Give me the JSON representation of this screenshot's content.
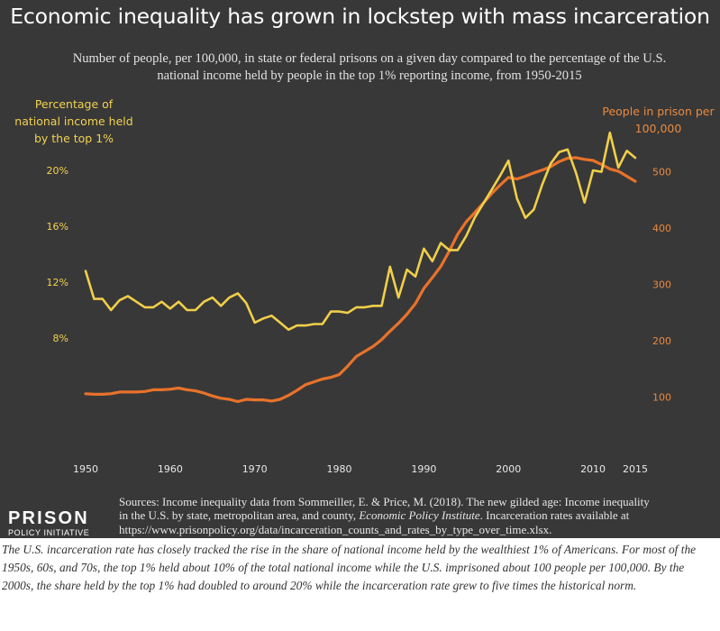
{
  "header": {
    "title": "Economic inequality has grown in lockstep with mass incarceration",
    "subtitle": "Number of people, per 100,000, in state or federal prisons on a given day compared to the percentage of the U.S. national income held by people in the top 1% reporting income, from 1950-2015"
  },
  "axis_labels": {
    "left": "Percentage of national income held by the top 1%",
    "right": "People in prison per 100,000"
  },
  "sources": {
    "part1": "Sources: Income inequality data from Sommeiller, E. & Price, M. (2018). The new gilded age: Income inequality in the U.S. by state, metropolitan area, and county, ",
    "publication": "Economic Policy Institute",
    "part2": ". Incarceration rates available at https://www.prisonpolicy.org/data/incarceration_counts_and_rates_by_type_over_time.xlsx."
  },
  "logo": {
    "line1": "PRISON",
    "line2": "POLICY INITIATIVE"
  },
  "caption": "The U.S. incarceration rate has closely tracked the rise in the share of national income held by the wealthiest 1% of Americans. For most of the 1950s, 60s, and 70s, the top 1% held about 10% of the total national income while the U.S. imprisoned about 100 people per 100,000. By the 2000s, the share held by the top 1% had doubled to around 20% while the incarceration rate grew to five times the historical norm.",
  "colors": {
    "background": "#383838",
    "income_series": "#f0cf4a",
    "prison_series": "#e8722a",
    "left_axis_text": "#f2d151",
    "right_axis_text": "#e98a3f"
  },
  "chart_data": {
    "type": "line",
    "title": "Economic inequality has grown in lockstep with mass incarceration",
    "xlabel": "",
    "x_ticks": [
      "1950",
      "1960",
      "1970",
      "1980",
      "1990",
      "2000",
      "2010",
      "2015"
    ],
    "x_tick_values": [
      1950,
      1960,
      1970,
      1980,
      1990,
      2000,
      2010,
      2015
    ],
    "xlim": [
      1950,
      2015
    ],
    "y_left": {
      "label": "Percentage of national income held by the top 1%",
      "ticks": [
        "8%",
        "12%",
        "16%",
        "20%"
      ],
      "tick_values": [
        8,
        12,
        16,
        20
      ],
      "ylim": [
        4,
        24
      ]
    },
    "y_right": {
      "label": "People in prison per 100,000",
      "ticks": [
        "100",
        "200",
        "300",
        "400",
        "500"
      ],
      "tick_values": [
        100,
        200,
        300,
        400,
        500
      ],
      "ylim": [
        50,
        600
      ]
    },
    "grid": false,
    "x": [
      1950,
      1951,
      1952,
      1953,
      1954,
      1955,
      1956,
      1957,
      1958,
      1959,
      1960,
      1961,
      1962,
      1963,
      1964,
      1965,
      1966,
      1967,
      1968,
      1969,
      1970,
      1971,
      1972,
      1973,
      1974,
      1975,
      1976,
      1977,
      1978,
      1979,
      1980,
      1981,
      1982,
      1983,
      1984,
      1985,
      1986,
      1987,
      1988,
      1989,
      1990,
      1991,
      1992,
      1993,
      1994,
      1995,
      1996,
      1997,
      1998,
      1999,
      2000,
      2001,
      2002,
      2003,
      2004,
      2005,
      2006,
      2007,
      2008,
      2009,
      2010,
      2011,
      2012,
      2013,
      2014,
      2015
    ],
    "series": [
      {
        "name": "Percentage of national income held by the top 1%",
        "axis": "left",
        "values": [
          12.8,
          10.8,
          10.8,
          10.0,
          10.7,
          11.0,
          10.6,
          10.2,
          10.2,
          10.6,
          10.1,
          10.6,
          10.0,
          10.0,
          10.6,
          10.9,
          10.3,
          10.9,
          11.2,
          10.5,
          9.1,
          9.4,
          9.6,
          9.1,
          8.6,
          8.9,
          8.9,
          9.0,
          9.0,
          9.9,
          9.9,
          9.8,
          10.2,
          10.2,
          10.3,
          10.3,
          13.1,
          10.9,
          12.9,
          12.4,
          14.4,
          13.5,
          14.8,
          14.3,
          14.3,
          15.3,
          16.6,
          17.6,
          18.6,
          19.6,
          20.7,
          18.0,
          16.6,
          17.2,
          19.0,
          20.5,
          21.3,
          21.5,
          19.8,
          17.7,
          20.0,
          19.9,
          22.7,
          20.2,
          21.4,
          20.9
        ]
      },
      {
        "name": "People in prison per 100,000",
        "axis": "right",
        "values": [
          106,
          105,
          105,
          106,
          109,
          109,
          109,
          110,
          113,
          113,
          114,
          116,
          113,
          111,
          107,
          102,
          98,
          96,
          92,
          96,
          95,
          95,
          93,
          96,
          103,
          112,
          122,
          127,
          132,
          135,
          140,
          155,
          172,
          181,
          190,
          202,
          217,
          231,
          247,
          266,
          293,
          312,
          332,
          359,
          389,
          411,
          427,
          444,
          461,
          476,
          490,
          487,
          492,
          498,
          503,
          509,
          518,
          524,
          525,
          522,
          520,
          513,
          505,
          501,
          492,
          483
        ]
      }
    ]
  }
}
